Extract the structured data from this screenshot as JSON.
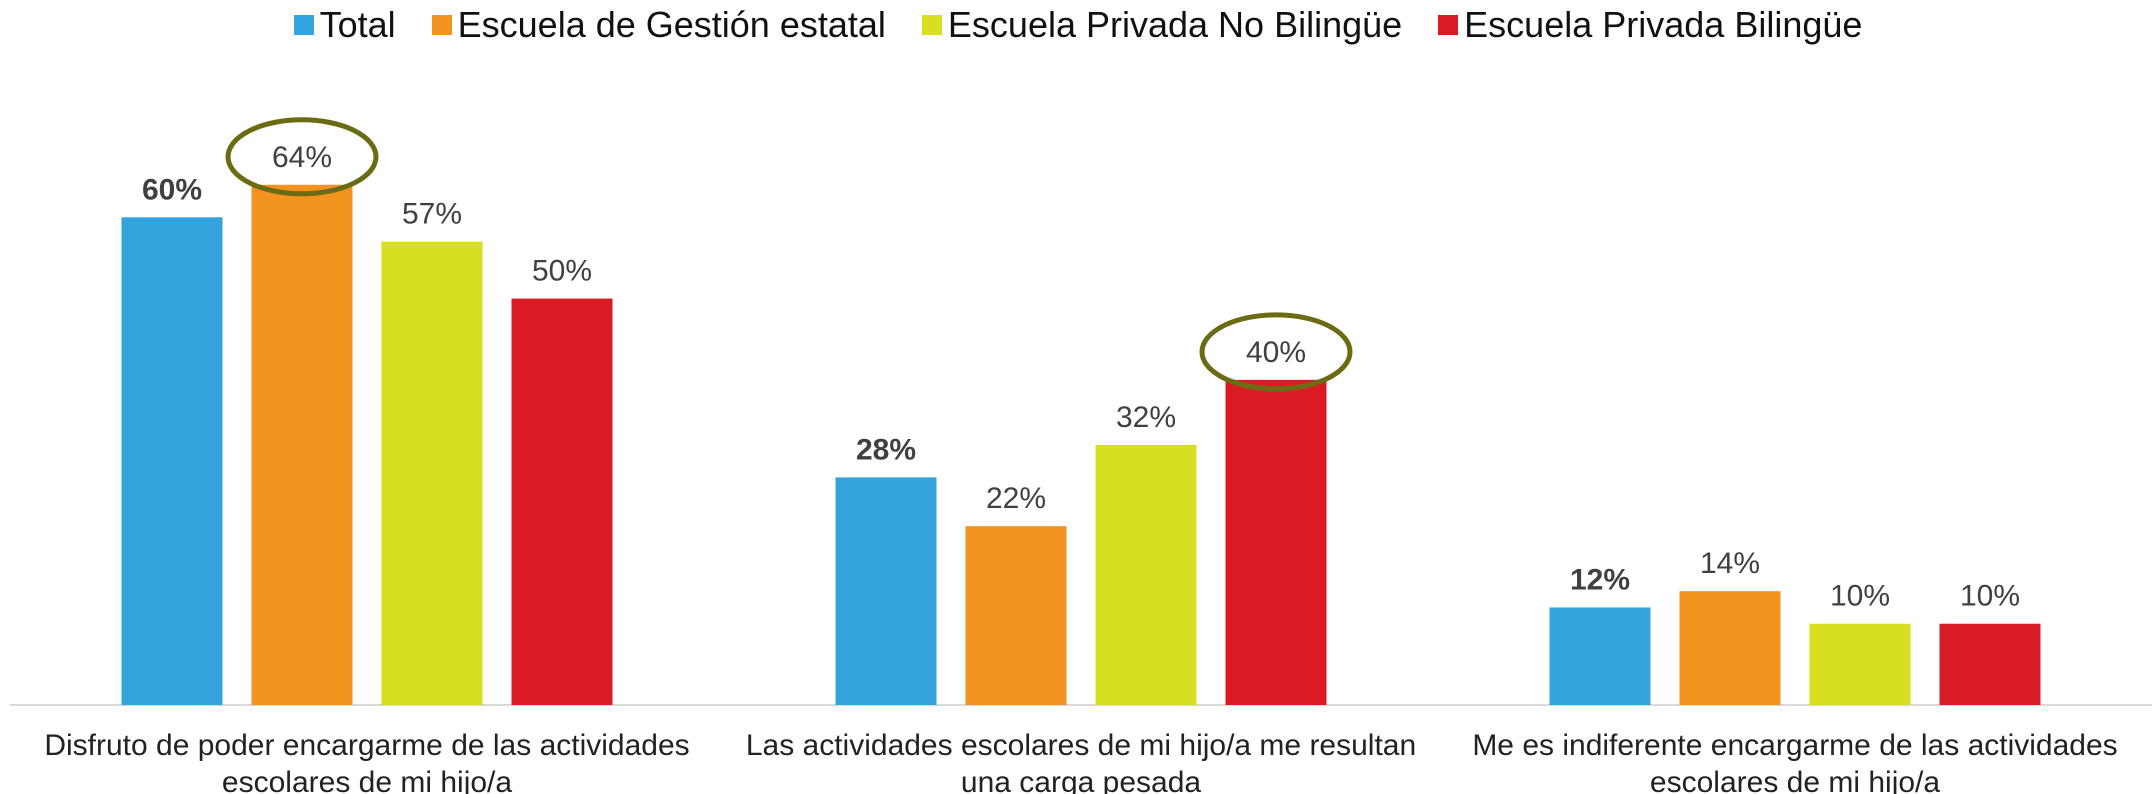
{
  "chart_data": {
    "type": "bar",
    "categories": [
      "Disfruto de poder encargarme de las actividades escolares de mi hijo/a",
      "Las actividades escolares de mi hijo/a me resultan una carga pesada",
      "Me es indiferente encargarme de las actividades escolares de mi hijo/a"
    ],
    "series": [
      {
        "name": "Total",
        "color": "#34a4dc",
        "values": [
          60,
          28,
          12
        ],
        "value_labels": [
          "60%",
          "28%",
          "12%"
        ]
      },
      {
        "name": "Escuela de Gestión estatal",
        "color": "#f39320",
        "values": [
          64,
          22,
          14
        ],
        "value_labels": [
          "64%",
          "22%",
          "14%"
        ]
      },
      {
        "name": "Escuela Privada No Bilingüe",
        "color": "#d6e021",
        "values": [
          57,
          32,
          10
        ],
        "value_labels": [
          "57%",
          "32%",
          "10%"
        ]
      },
      {
        "name": "Escuela Privada Bilingüe",
        "color": "#d91c24",
        "values": [
          50,
          40,
          10
        ],
        "value_labels": [
          "50%",
          "40%",
          "10%"
        ]
      }
    ],
    "ylim": [
      0,
      70
    ],
    "legend": "top",
    "highlights": [
      {
        "series": 1,
        "category": 0
      },
      {
        "series": 3,
        "category": 1
      }
    ]
  }
}
